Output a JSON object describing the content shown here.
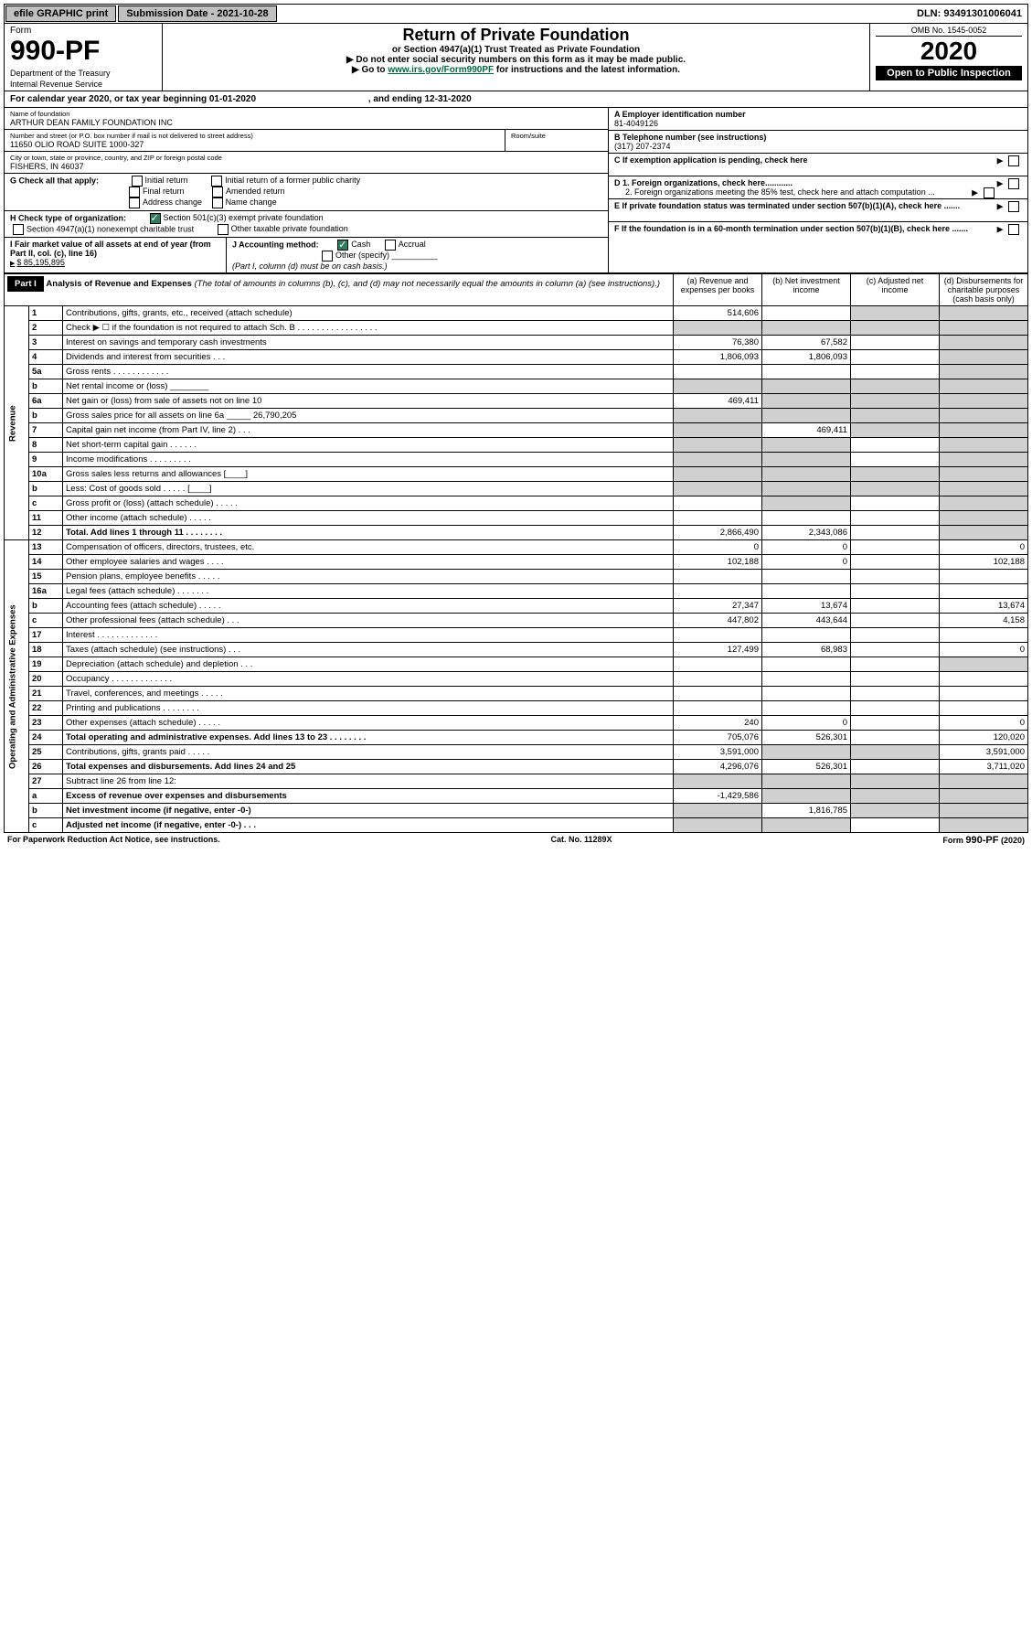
{
  "topbar": {
    "efile": "efile GRAPHIC print",
    "sub_date_label": "Submission Date - ",
    "sub_date": "2021-10-28",
    "dln_label": "DLN: ",
    "dln": "93491301006041"
  },
  "header": {
    "form_word": "Form",
    "form_no": "990-PF",
    "dept": "Department of the Treasury",
    "irs": "Internal Revenue Service",
    "title": "Return of Private Foundation",
    "subtitle": "or Section 4947(a)(1) Trust Treated as Private Foundation",
    "warn": "▶ Do not enter social security numbers on this form as it may be made public.",
    "goto": "▶ Go to ",
    "goto_link": "www.irs.gov/Form990PF",
    "goto_rest": " for instructions and the latest information.",
    "omb": "OMB No. 1545-0052",
    "year": "2020",
    "open": "Open to Public Inspection"
  },
  "cal_year": {
    "pre": "For calendar year 2020, or tax year beginning ",
    "begin": "01-01-2020",
    "mid": ", and ending ",
    "end": "12-31-2020"
  },
  "info": {
    "name_label": "Name of foundation",
    "name": "ARTHUR DEAN FAMILY FOUNDATION INC",
    "addr_label": "Number and street (or P.O. box number if mail is not delivered to street address)",
    "addr": "11650 OLIO ROAD SUITE 1000-327",
    "room_label": "Room/suite",
    "city_label": "City or town, state or province, country, and ZIP or foreign postal code",
    "city": "FISHERS, IN  46037",
    "A_label": "A Employer identification number",
    "A_val": "81-4049126",
    "B_label": "B Telephone number (see instructions)",
    "B_val": "(317) 207-2374",
    "C_label": "C If exemption application is pending, check here",
    "D1": "D 1. Foreign organizations, check here............",
    "D2": "2. Foreign organizations meeting the 85% test, check here and attach computation ...",
    "E": "E  If private foundation status was terminated under section 507(b)(1)(A), check here .......",
    "F": "F  If the foundation is in a 60-month termination under section 507(b)(1)(B), check here .......",
    "G_label": "G Check all that apply:",
    "G_opts": [
      "Initial return",
      "Initial return of a former public charity",
      "Final return",
      "Amended return",
      "Address change",
      "Name change"
    ],
    "H_label": "H Check type of organization:",
    "H_501": "Section 501(c)(3) exempt private foundation",
    "H_4947": "Section 4947(a)(1) nonexempt charitable trust",
    "H_other": "Other taxable private foundation",
    "I_label": "I Fair market value of all assets at end of year (from Part II, col. (c), line 16)",
    "I_val": "$  85,195,895",
    "J_label": "J Accounting method:",
    "J_cash": "Cash",
    "J_accrual": "Accrual",
    "J_other": "Other (specify)",
    "J_note": "(Part I, column (d) must be on cash basis.)"
  },
  "part1": {
    "label": "Part I",
    "title": "Analysis of Revenue and Expenses",
    "title_note": " (The total of amounts in columns (b), (c), and (d) may not necessarily equal the amounts in column (a) (see instructions).)",
    "col_a": "(a)  Revenue and expenses per books",
    "col_b": "(b)  Net investment income",
    "col_c": "(c)  Adjusted net income",
    "col_d": "(d)  Disbursements for charitable purposes (cash basis only)"
  },
  "sides": {
    "rev": "Revenue",
    "exp": "Operating and Administrative Expenses"
  },
  "rows": [
    {
      "n": "1",
      "d": "Contributions, gifts, grants, etc., received (attach schedule)",
      "a": "514,606",
      "b": "",
      "c": "shade",
      "dd": "shade"
    },
    {
      "n": "2",
      "d": "Check ▶ ☐ if the foundation is not required to attach Sch. B  . . . . . . . . . . . . . . . . .",
      "a": "shade",
      "b": "shade",
      "c": "shade",
      "dd": "shade"
    },
    {
      "n": "3",
      "d": "Interest on savings and temporary cash investments",
      "a": "76,380",
      "b": "67,582",
      "c": "",
      "dd": "shade"
    },
    {
      "n": "4",
      "d": "Dividends and interest from securities  . . .",
      "a": "1,806,093",
      "b": "1,806,093",
      "c": "",
      "dd": "shade"
    },
    {
      "n": "5a",
      "d": "Gross rents  . . . . . . . . . . . .",
      "a": "",
      "b": "",
      "c": "",
      "dd": "shade"
    },
    {
      "n": "b",
      "d": "Net rental income or (loss)   ________",
      "a": "shade",
      "b": "shade",
      "c": "shade",
      "dd": "shade"
    },
    {
      "n": "6a",
      "d": "Net gain or (loss) from sale of assets not on line 10",
      "a": "469,411",
      "b": "shade",
      "c": "shade",
      "dd": "shade"
    },
    {
      "n": "b",
      "d": "Gross sales price for all assets on line 6a _____ 26,790,205",
      "a": "shade",
      "b": "shade",
      "c": "shade",
      "dd": "shade"
    },
    {
      "n": "7",
      "d": "Capital gain net income (from Part IV, line 2)  . . .",
      "a": "shade",
      "b": "469,411",
      "c": "shade",
      "dd": "shade"
    },
    {
      "n": "8",
      "d": "Net short-term capital gain  . . . . . .",
      "a": "shade",
      "b": "shade",
      "c": "",
      "dd": "shade"
    },
    {
      "n": "9",
      "d": "Income modifications . . . . . . . . .",
      "a": "shade",
      "b": "shade",
      "c": "",
      "dd": "shade"
    },
    {
      "n": "10a",
      "d": "Gross sales less returns and allowances   [____]",
      "a": "shade",
      "b": "shade",
      "c": "shade",
      "dd": "shade"
    },
    {
      "n": "b",
      "d": "Less: Cost of goods sold   . . . . .  [____]",
      "a": "shade",
      "b": "shade",
      "c": "shade",
      "dd": "shade"
    },
    {
      "n": "c",
      "d": "Gross profit or (loss) (attach schedule)  . . . . .",
      "a": "",
      "b": "shade",
      "c": "",
      "dd": "shade"
    },
    {
      "n": "11",
      "d": "Other income (attach schedule)   . . . . .",
      "a": "",
      "b": "",
      "c": "",
      "dd": "shade"
    },
    {
      "n": "12",
      "d": "Total. Add lines 1 through 11  . . . . . . . .",
      "bold": true,
      "a": "2,866,490",
      "b": "2,343,086",
      "c": "",
      "dd": "shade"
    },
    {
      "n": "13",
      "d": "Compensation of officers, directors, trustees, etc.",
      "a": "0",
      "b": "0",
      "c": "",
      "dd": "0"
    },
    {
      "n": "14",
      "d": "Other employee salaries and wages   . . . .",
      "a": "102,188",
      "b": "0",
      "c": "",
      "dd": "102,188"
    },
    {
      "n": "15",
      "d": "Pension plans, employee benefits . . . . .",
      "a": "",
      "b": "",
      "c": "",
      "dd": ""
    },
    {
      "n": "16a",
      "d": "Legal fees (attach schedule) . . . . . . .",
      "a": "",
      "b": "",
      "c": "",
      "dd": ""
    },
    {
      "n": "b",
      "d": "Accounting fees (attach schedule) . . . . .",
      "a": "27,347",
      "b": "13,674",
      "c": "",
      "dd": "13,674"
    },
    {
      "n": "c",
      "d": "Other professional fees (attach schedule)   . . .",
      "a": "447,802",
      "b": "443,644",
      "c": "",
      "dd": "4,158"
    },
    {
      "n": "17",
      "d": "Interest  . . . . . . . . . . . . .",
      "a": "",
      "b": "",
      "c": "",
      "dd": ""
    },
    {
      "n": "18",
      "d": "Taxes (attach schedule) (see instructions)  . . .",
      "a": "127,499",
      "b": "68,983",
      "c": "",
      "dd": "0"
    },
    {
      "n": "19",
      "d": "Depreciation (attach schedule) and depletion  . . .",
      "a": "",
      "b": "",
      "c": "",
      "dd": "shade"
    },
    {
      "n": "20",
      "d": "Occupancy . . . . . . . . . . . . .",
      "a": "",
      "b": "",
      "c": "",
      "dd": ""
    },
    {
      "n": "21",
      "d": "Travel, conferences, and meetings . . . . .",
      "a": "",
      "b": "",
      "c": "",
      "dd": ""
    },
    {
      "n": "22",
      "d": "Printing and publications . . . . . . . .",
      "a": "",
      "b": "",
      "c": "",
      "dd": ""
    },
    {
      "n": "23",
      "d": "Other expenses (attach schedule)  . . . . .",
      "a": "240",
      "b": "0",
      "c": "",
      "dd": "0"
    },
    {
      "n": "24",
      "d": "Total operating and administrative expenses. Add lines 13 to 23  . . . . . . . .",
      "bold": true,
      "a": "705,076",
      "b": "526,301",
      "c": "",
      "dd": "120,020"
    },
    {
      "n": "25",
      "d": "Contributions, gifts, grants paid   . . . . .",
      "a": "3,591,000",
      "b": "shade",
      "c": "shade",
      "dd": "3,591,000"
    },
    {
      "n": "26",
      "d": "Total expenses and disbursements. Add lines 24 and 25",
      "bold": true,
      "a": "4,296,076",
      "b": "526,301",
      "c": "",
      "dd": "3,711,020"
    },
    {
      "n": "27",
      "d": "Subtract line 26 from line 12:",
      "a": "shade",
      "b": "shade",
      "c": "shade",
      "dd": "shade"
    },
    {
      "n": "a",
      "d": "Excess of revenue over expenses and disbursements",
      "bold": true,
      "a": "-1,429,586",
      "b": "shade",
      "c": "shade",
      "dd": "shade"
    },
    {
      "n": "b",
      "d": "Net investment income (if negative, enter -0-)",
      "bold": true,
      "a": "shade",
      "b": "1,816,785",
      "c": "shade",
      "dd": "shade"
    },
    {
      "n": "c",
      "d": "Adjusted net income (if negative, enter -0-)  . . .",
      "bold": true,
      "a": "shade",
      "b": "shade",
      "c": "",
      "dd": "shade"
    }
  ],
  "footer": {
    "left": "For Paperwork Reduction Act Notice, see instructions.",
    "mid": "Cat. No. 11289X",
    "right": "Form 990-PF (2020)"
  }
}
